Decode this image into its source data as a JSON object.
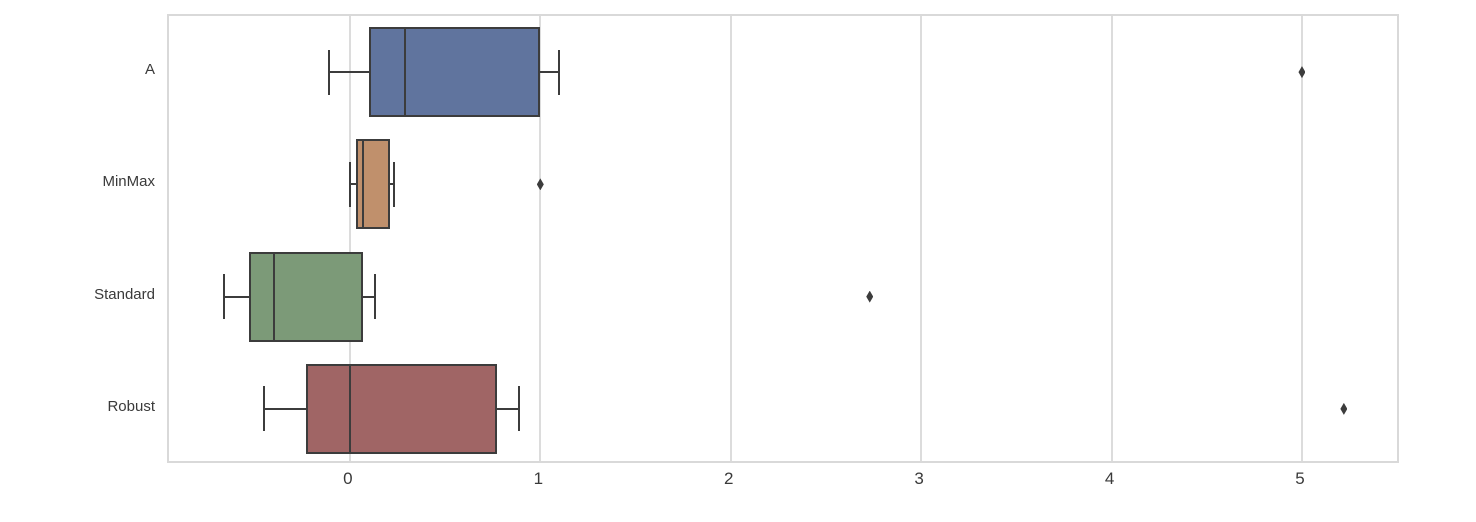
{
  "figure": {
    "background_color": "#ffffff",
    "plot_border_color": "#d9d9d9",
    "grid_color": "#dcdcdc",
    "line_color": "#3c3c3c",
    "text_color": "#3a3a3a",
    "outlier_marker": "thin-diamond"
  },
  "chart_data": {
    "type": "boxplot",
    "orientation": "horizontal",
    "title": "",
    "xlabel": "",
    "ylabel": "",
    "legend": "none",
    "grid": "vertical-gridlines-on",
    "categories": [
      "A",
      "MinMax",
      "Standard",
      "Robust"
    ],
    "x_tick_labels": [
      "0",
      "1",
      "2",
      "3",
      "4",
      "5"
    ],
    "x_tick_values": [
      0,
      1,
      2,
      3,
      4,
      5
    ],
    "xlim": [
      -0.95,
      5.52
    ],
    "series": [
      {
        "name": "A",
        "color": "#60749e",
        "whisker_low": -0.11,
        "q1": 0.1,
        "median": 0.29,
        "q3": 1.0,
        "whisker_high": 1.1,
        "outliers": [
          5.0
        ]
      },
      {
        "name": "MinMax",
        "color": "#c0906c",
        "whisker_low": 0.0,
        "q1": 0.03,
        "median": 0.07,
        "q3": 0.21,
        "whisker_high": 0.23,
        "outliers": [
          1.0
        ]
      },
      {
        "name": "Standard",
        "color": "#7c9a78",
        "whisker_low": -0.66,
        "q1": -0.53,
        "median": -0.4,
        "q3": 0.07,
        "whisker_high": 0.13,
        "outliers": [
          2.73
        ]
      },
      {
        "name": "Robust",
        "color": "#a06565",
        "whisker_low": -0.45,
        "q1": -0.23,
        "median": 0.0,
        "q3": 0.77,
        "whisker_high": 0.89,
        "outliers": [
          5.22
        ]
      }
    ]
  }
}
